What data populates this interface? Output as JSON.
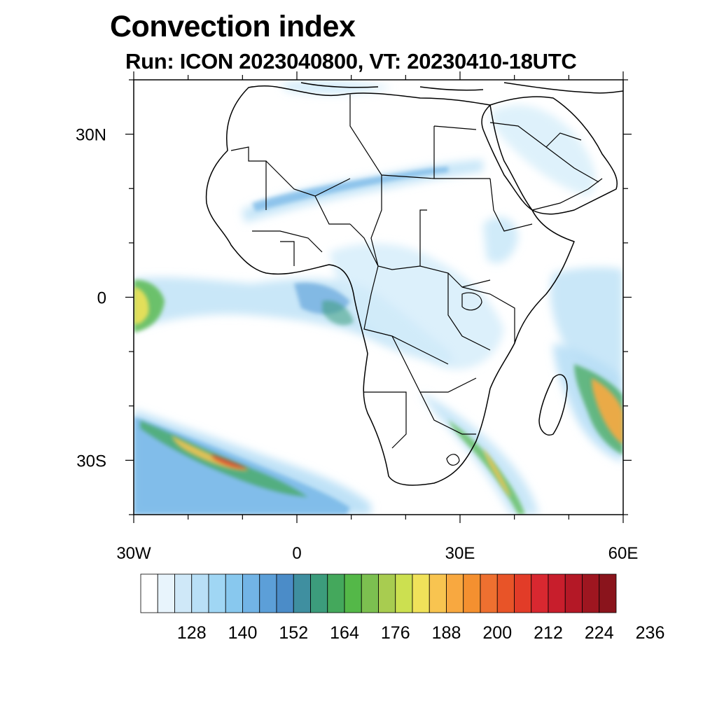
{
  "title": "Convection index",
  "subtitle": "Run: ICON 2023040800,  VT: 20230410-18UTC",
  "map": {
    "lon_range": [
      -30,
      60
    ],
    "lat_range": [
      -40,
      40
    ],
    "x_ticks": [
      {
        "value": -30,
        "label": "30W"
      },
      {
        "value": 0,
        "label": "0"
      },
      {
        "value": 30,
        "label": "30E"
      },
      {
        "value": 60,
        "label": "60E"
      }
    ],
    "y_ticks": [
      {
        "value": 30,
        "label": "30N"
      },
      {
        "value": 0,
        "label": "0"
      },
      {
        "value": -30,
        "label": "30S"
      }
    ]
  },
  "colorbar": {
    "colors": [
      "#ffffff",
      "#e8f4fc",
      "#cfe8f8",
      "#b8dff6",
      "#a0d6f4",
      "#88c8ee",
      "#72b4e6",
      "#5c9fd8",
      "#4b8cc8",
      "#3f8fa0",
      "#3c9c7c",
      "#44a85c",
      "#54b848",
      "#7cc050",
      "#a8cc50",
      "#cce050",
      "#f0e25a",
      "#f8c450",
      "#f8a840",
      "#f49030",
      "#ee7030",
      "#e85428",
      "#e23c28",
      "#d82830",
      "#c81e2c",
      "#b41826",
      "#9e1620",
      "#8a141c"
    ],
    "labels": [
      "128",
      "140",
      "152",
      "164",
      "176",
      "188",
      "200",
      "212",
      "224",
      "236"
    ]
  }
}
